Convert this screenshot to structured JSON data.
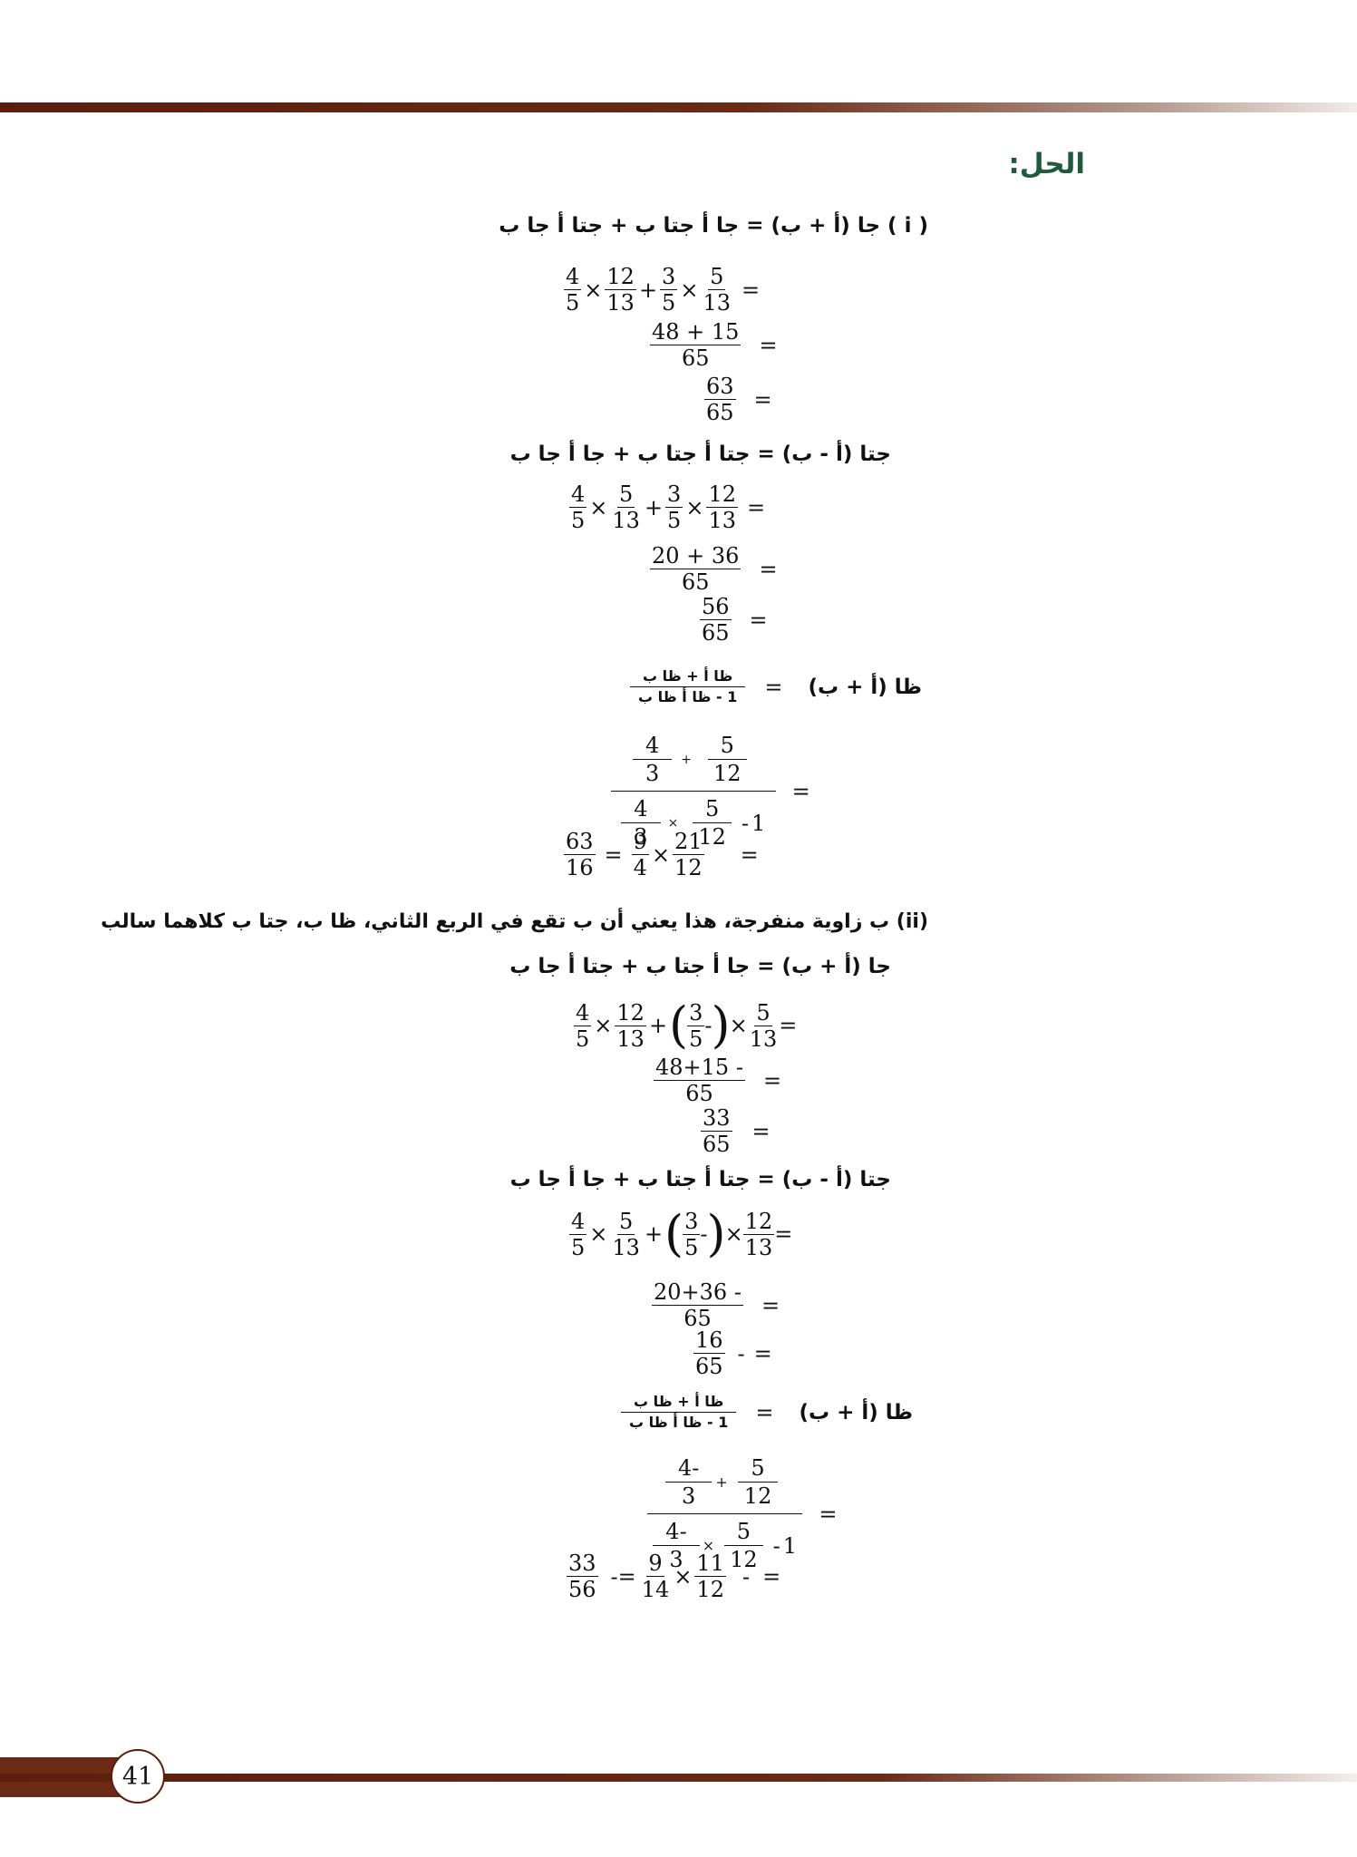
{
  "heading": "الحل:",
  "part_i": {
    "sin_sum_title": "( i ) جا (أ + ب) = جا أ جتا ب + جتا أ جا ب",
    "cos_diff_title": "جتا (أ - ب) = جتا أ جتا ب + جا أ جا ب",
    "tan_sum_label": "ظا (أ + ب)",
    "tan_num": "ظا أ + ظا ب",
    "tan_den": "1 - ظا أ ظا ب"
  },
  "part_ii": {
    "intro": "(ii) ب زاوية منفرجة، هذا يعني أن ب تقع في الربع الثاني، ظا ب، جتا ب كلاهما سالب",
    "sin_sum_title": "جا (أ + ب) = جا أ جتا ب + جتا أ جا ب",
    "cos_diff_title": "جتا (أ - ب) = جتا أ جتا ب + جا أ جا ب",
    "tan_sum_label": "ظا (أ + ب)",
    "tan_num": "ظا أ + ظا ب",
    "tan_den": "1 - ظا أ ظا ب"
  },
  "math": {
    "four": "4",
    "five": "5",
    "three": "3",
    "twelve": "12",
    "thirteen": "13",
    "sixtyfive": "65",
    "nine": "9",
    "sixteen": "16",
    "twentyone": "21",
    "fourteen": "14",
    "eleven": "11",
    "fiftysix": "56",
    "thirtythree": "33",
    "sixtythree": "63",
    "one": "1",
    "sum_48_15": "48 + 15",
    "sum_20_36": "20 + 36",
    "neg_48_15": "48+15 -",
    "neg_20_36": "20+36 -",
    "neg_four": "4-",
    "times": "×",
    "plus": "+",
    "minus": "-",
    "eq": "=",
    "neq": "-=",
    "lp": "(",
    "rp": ")"
  },
  "page_number": "41"
}
